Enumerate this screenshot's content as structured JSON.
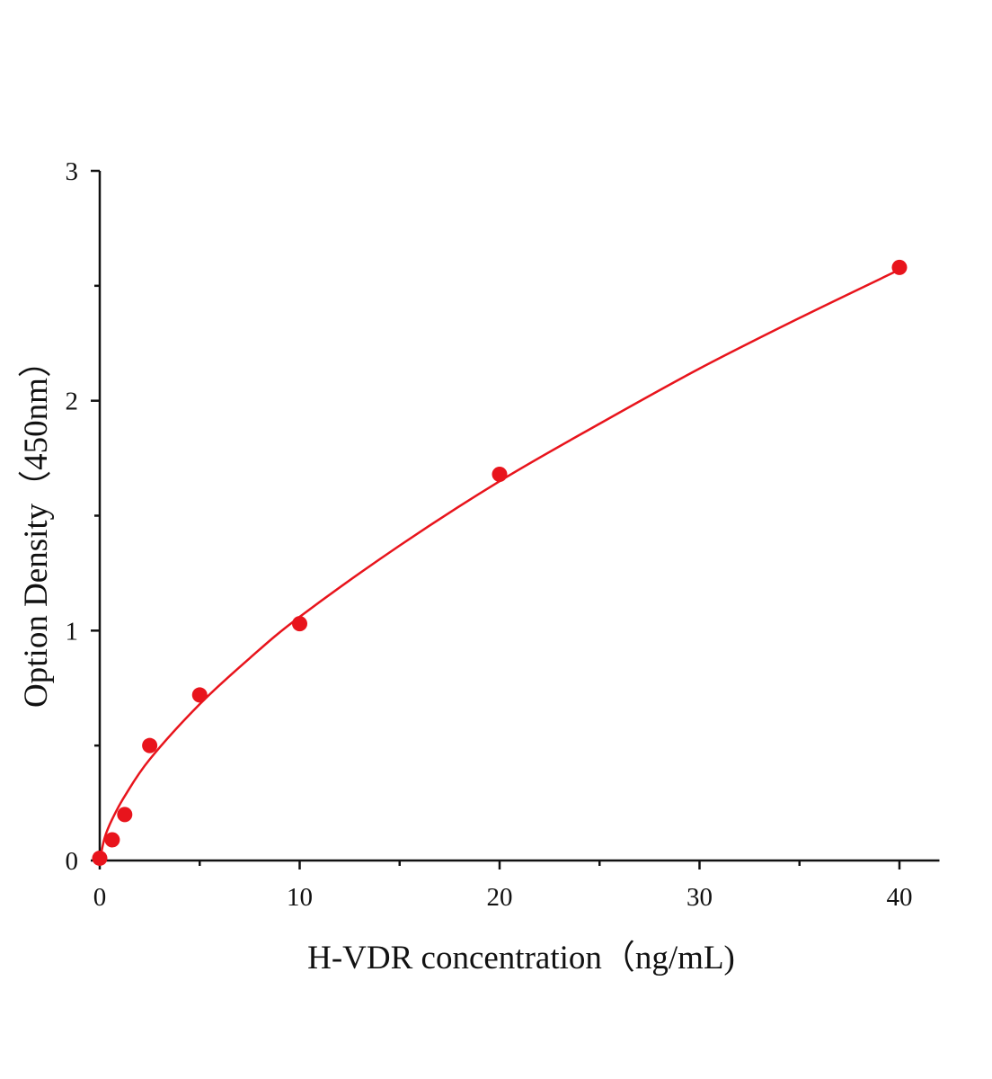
{
  "chart_data": {
    "type": "scatter",
    "title": "",
    "xlabel": "H-VDR concentration（ng/mL)",
    "ylabel": "Option Density（450nm）",
    "xlim": [
      0,
      42
    ],
    "ylim": [
      0,
      3
    ],
    "x_ticks": [
      0,
      10,
      20,
      30,
      40
    ],
    "x_tick_labels": [
      "0",
      "10",
      "20",
      "30",
      "40"
    ],
    "y_ticks": [
      0,
      1,
      2,
      3
    ],
    "y_tick_labels": [
      "0",
      "1",
      "2",
      "3"
    ],
    "grid": false,
    "color": "#e8141c",
    "series": [
      {
        "x": [
          0,
          0.625,
          1.25,
          2.5,
          5,
          10,
          20,
          40
        ],
        "y": [
          0.01,
          0.09,
          0.2,
          0.5,
          0.72,
          1.03,
          1.68,
          2.58
        ]
      }
    ],
    "fit_curve": {
      "x": [
        0,
        0.25,
        0.625,
        1.25,
        2.5,
        5,
        7.5,
        10,
        15,
        20,
        25,
        30,
        35,
        40
      ],
      "y": [
        0,
        0.1,
        0.18,
        0.28,
        0.44,
        0.68,
        0.88,
        1.06,
        1.37,
        1.65,
        1.9,
        2.14,
        2.36,
        2.57
      ]
    }
  }
}
